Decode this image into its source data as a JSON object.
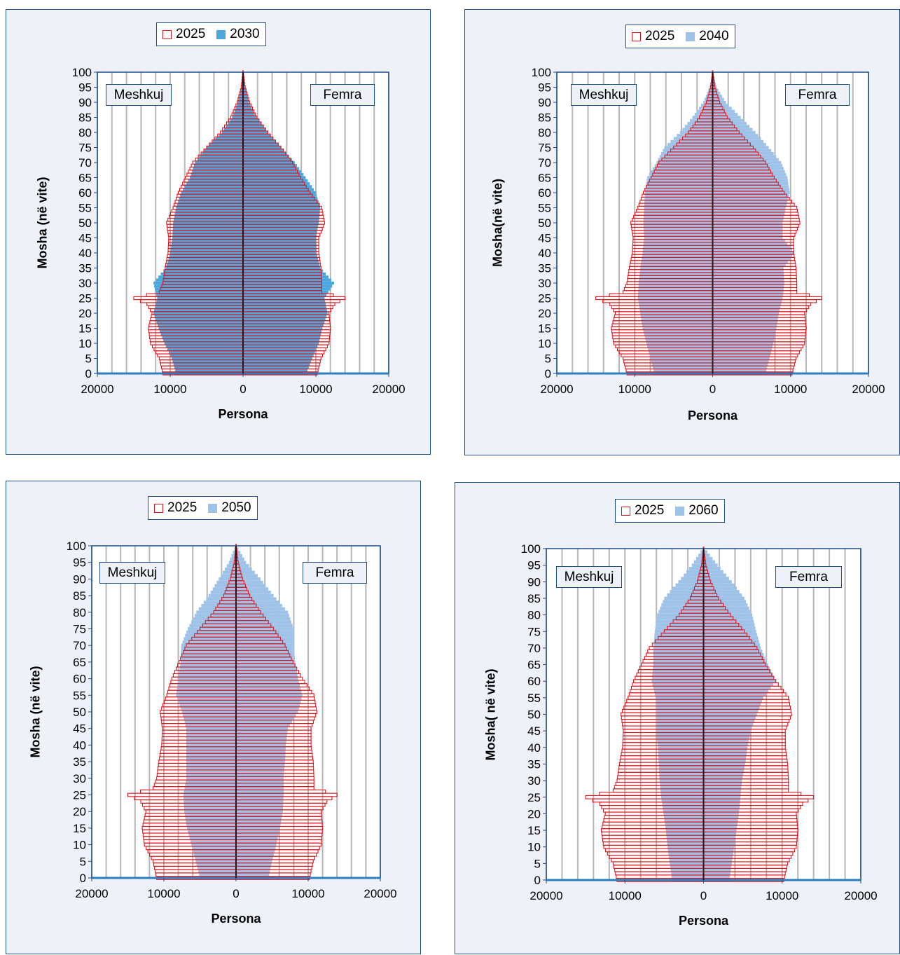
{
  "chart_data": [
    {
      "type": "bar",
      "subtype": "population-pyramid",
      "legend": [
        {
          "name": "2025",
          "color": "#e0141c",
          "style": "outline"
        },
        {
          "name": "2030",
          "color": "#4aa8de",
          "style": "filled"
        }
      ],
      "legend_placement": "top-center",
      "ylabel": "Mosha (në vite)",
      "xlabel": "Persona",
      "left_label": "Meshkuj",
      "right_label": "Femra",
      "xlim": [
        -20000,
        20000
      ],
      "ylim": [
        0,
        100
      ],
      "x_tick_labels": [
        "20000",
        "10000",
        "0",
        "10000",
        "20000"
      ],
      "y_tick_labels": [
        "0",
        "5",
        "10",
        "15",
        "20",
        "25",
        "30",
        "35",
        "40",
        "45",
        "50",
        "55",
        "60",
        "65",
        "70",
        "75",
        "80",
        "85",
        "90",
        "95",
        "100"
      ],
      "grid": "vertical",
      "series": [
        {
          "name": "2025",
          "ages": [
            0,
            5,
            10,
            15,
            20,
            23,
            25,
            27,
            30,
            35,
            40,
            45,
            50,
            55,
            60,
            65,
            70,
            75,
            80,
            85,
            90,
            95,
            100
          ],
          "male": [
            11000,
            11500,
            12700,
            13000,
            12500,
            13200,
            15000,
            11500,
            11000,
            10700,
            10300,
            10200,
            10500,
            9600,
            8900,
            7900,
            6900,
            5000,
            3100,
            1700,
            800,
            250,
            20
          ],
          "female": [
            10200,
            10700,
            11800,
            12000,
            11800,
            12600,
            14000,
            10800,
            10800,
            10700,
            10400,
            10400,
            11200,
            10800,
            9200,
            7900,
            6800,
            5200,
            3400,
            1900,
            900,
            300,
            20
          ]
        },
        {
          "name": "2030",
          "ages": [
            0,
            5,
            10,
            15,
            20,
            25,
            30,
            35,
            40,
            45,
            50,
            55,
            60,
            65,
            70,
            75,
            80,
            85,
            90,
            95,
            100
          ],
          "male": [
            9200,
            9800,
            10800,
            11600,
            12300,
            11800,
            12300,
            10600,
            10000,
            9700,
            9600,
            9200,
            8500,
            7300,
            6600,
            5000,
            2900,
            1500,
            700,
            200,
            20
          ],
          "female": [
            8700,
            9500,
            10400,
            10900,
            11600,
            11200,
            12500,
            10600,
            10100,
            10000,
            10400,
            10600,
            10000,
            8600,
            7100,
            5200,
            3400,
            1800,
            800,
            250,
            20
          ]
        }
      ]
    },
    {
      "type": "bar",
      "subtype": "population-pyramid",
      "legend": [
        {
          "name": "2025",
          "color": "#e0141c",
          "style": "outline"
        },
        {
          "name": "2040",
          "color": "#9fc3e8",
          "style": "filled"
        }
      ],
      "legend_placement": "top-center",
      "ylabel": "Mosha(në vite)",
      "xlabel": "Persona",
      "left_label": "Meshkuj",
      "right_label": "Femra",
      "xlim": [
        -20000,
        20000
      ],
      "ylim": [
        0,
        100
      ],
      "x_tick_labels": [
        "20000",
        "10000",
        "0",
        "10000",
        "20000"
      ],
      "y_tick_labels": [
        "0",
        "5",
        "10",
        "15",
        "20",
        "25",
        "30",
        "35",
        "40",
        "45",
        "50",
        "55",
        "60",
        "65",
        "70",
        "75",
        "80",
        "85",
        "90",
        "95",
        "100"
      ],
      "grid": "vertical",
      "series": [
        {
          "name": "2025",
          "ages": [
            0,
            5,
            10,
            15,
            20,
            23,
            25,
            27,
            30,
            35,
            40,
            45,
            50,
            55,
            60,
            65,
            70,
            75,
            80,
            85,
            90,
            95,
            100
          ],
          "male": [
            11000,
            11500,
            12700,
            13000,
            12500,
            13200,
            15000,
            11500,
            11000,
            10700,
            10300,
            10200,
            10500,
            9600,
            8900,
            7900,
            6900,
            5000,
            3100,
            1700,
            800,
            250,
            20
          ],
          "female": [
            10200,
            10700,
            11800,
            12000,
            11800,
            12600,
            14000,
            10800,
            10800,
            10700,
            10400,
            10400,
            11200,
            10800,
            9200,
            7900,
            6800,
            5200,
            3400,
            1900,
            900,
            300,
            20
          ]
        },
        {
          "name": "2040",
          "ages": [
            0,
            5,
            10,
            15,
            20,
            25,
            30,
            35,
            40,
            45,
            50,
            55,
            60,
            65,
            70,
            75,
            80,
            85,
            90,
            95,
            100
          ],
          "male": [
            7500,
            8000,
            8500,
            9000,
            9300,
            9600,
            9500,
            9300,
            9000,
            8800,
            8900,
            8800,
            8700,
            8400,
            7200,
            6200,
            4200,
            2600,
            1200,
            400,
            30
          ],
          "female": [
            6800,
            7300,
            7800,
            8200,
            8500,
            9000,
            9200,
            9100,
            10500,
            9000,
            9000,
            9400,
            9900,
            9600,
            8800,
            7200,
            5500,
            3600,
            1700,
            500,
            40
          ]
        }
      ]
    },
    {
      "type": "bar",
      "subtype": "population-pyramid",
      "legend": [
        {
          "name": "2025",
          "color": "#e0141c",
          "style": "outline"
        },
        {
          "name": "2050",
          "color": "#9fc3e8",
          "style": "filled"
        }
      ],
      "legend_placement": "top-center",
      "ylabel": "Mosha (në vite)",
      "xlabel": "Persona",
      "left_label": "Meshkuj",
      "right_label": "Femra",
      "xlim": [
        -20000,
        20000
      ],
      "ylim": [
        0,
        100
      ],
      "x_tick_labels": [
        "20000",
        "10000",
        "0",
        "10000",
        "20000"
      ],
      "y_tick_labels": [
        "0",
        "5",
        "10",
        "15",
        "20",
        "25",
        "30",
        "35",
        "40",
        "45",
        "50",
        "55",
        "60",
        "65",
        "70",
        "75",
        "80",
        "85",
        "90",
        "95",
        "100"
      ],
      "grid": "vertical",
      "series": [
        {
          "name": "2025",
          "ages": [
            0,
            5,
            10,
            15,
            20,
            23,
            25,
            27,
            30,
            35,
            40,
            45,
            50,
            55,
            60,
            65,
            70,
            75,
            80,
            85,
            90,
            95,
            100
          ],
          "male": [
            11000,
            11500,
            12700,
            13000,
            12500,
            13200,
            15000,
            11500,
            11000,
            10700,
            10300,
            10200,
            10500,
            9600,
            8900,
            7900,
            6900,
            5000,
            3100,
            1700,
            800,
            250,
            20
          ],
          "female": [
            10200,
            10700,
            11800,
            12000,
            11800,
            12600,
            14000,
            10800,
            10800,
            10700,
            10400,
            10400,
            11200,
            10800,
            9200,
            7900,
            6800,
            5200,
            3400,
            1900,
            900,
            300,
            20
          ]
        },
        {
          "name": "2050",
          "ages": [
            0,
            5,
            10,
            15,
            20,
            25,
            30,
            35,
            40,
            45,
            50,
            55,
            60,
            65,
            70,
            75,
            80,
            85,
            90,
            95,
            100
          ],
          "male": [
            5000,
            5600,
            6200,
            6800,
            7200,
            7300,
            6900,
            6900,
            6900,
            6900,
            7500,
            8300,
            8000,
            7700,
            7600,
            6700,
            5500,
            3800,
            2400,
            1000,
            60
          ],
          "female": [
            4500,
            5000,
            5600,
            6100,
            6500,
            6600,
            6600,
            6800,
            6900,
            7200,
            8600,
            9200,
            8600,
            8200,
            8000,
            8000,
            7200,
            5200,
            3400,
            1400,
            80
          ]
        }
      ]
    },
    {
      "type": "bar",
      "subtype": "population-pyramid",
      "legend": [
        {
          "name": "2025",
          "color": "#e0141c",
          "style": "outline"
        },
        {
          "name": "2060",
          "color": "#9fc3e8",
          "style": "filled"
        }
      ],
      "legend_placement": "top-center",
      "ylabel": "Mosha( në vite)",
      "xlabel": "Persona",
      "left_label": "Meshkuj",
      "right_label": "Femra",
      "xlim": [
        -20000,
        20000
      ],
      "ylim": [
        0,
        100
      ],
      "x_tick_labels": [
        "20000",
        "10000",
        "0",
        "10000",
        "20000"
      ],
      "y_tick_labels": [
        "0",
        "5",
        "10",
        "15",
        "20",
        "25",
        "30",
        "35",
        "40",
        "45",
        "50",
        "55",
        "60",
        "65",
        "70",
        "75",
        "80",
        "85",
        "90",
        "95",
        "100"
      ],
      "grid": "vertical",
      "series": [
        {
          "name": "2025",
          "ages": [
            0,
            5,
            10,
            15,
            20,
            23,
            25,
            27,
            30,
            35,
            40,
            45,
            50,
            55,
            60,
            65,
            70,
            75,
            80,
            85,
            90,
            95,
            100
          ],
          "male": [
            11000,
            11500,
            12700,
            13000,
            12500,
            13200,
            15000,
            11500,
            11000,
            10700,
            10300,
            10200,
            10500,
            9600,
            8900,
            7900,
            6900,
            5000,
            3100,
            1700,
            800,
            250,
            20
          ],
          "female": [
            10200,
            10700,
            11800,
            12000,
            11800,
            12600,
            14000,
            10800,
            10800,
            10700,
            10400,
            10400,
            11200,
            10800,
            9200,
            7900,
            6800,
            5200,
            3400,
            1900,
            900,
            300,
            20
          ]
        },
        {
          "name": "2060",
          "ages": [
            0,
            5,
            10,
            15,
            20,
            25,
            30,
            35,
            40,
            45,
            50,
            55,
            60,
            65,
            70,
            75,
            80,
            85,
            90,
            95,
            100
          ],
          "male": [
            4000,
            4300,
            4600,
            4800,
            5100,
            5400,
            5600,
            5700,
            5800,
            6000,
            6000,
            6100,
            6600,
            6400,
            6400,
            6200,
            5900,
            5000,
            3200,
            1500,
            100
          ],
          "female": [
            3300,
            3600,
            3900,
            4200,
            4500,
            4700,
            4900,
            5300,
            5600,
            6000,
            6800,
            7600,
            9200,
            8200,
            7300,
            6700,
            6200,
            5200,
            3600,
            1800,
            150
          ]
        }
      ]
    }
  ]
}
